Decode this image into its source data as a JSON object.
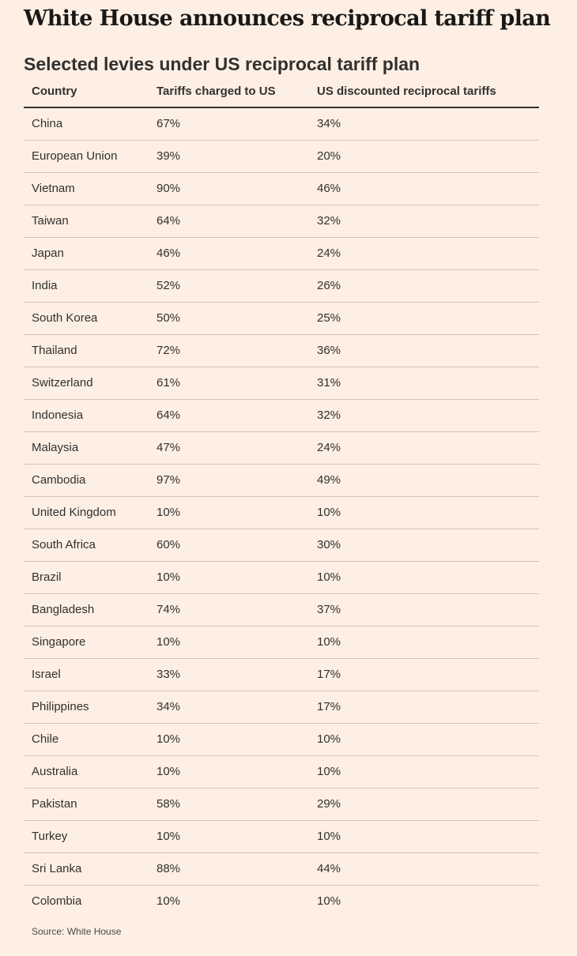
{
  "headline": "White House announces reciprocal tariff plan",
  "chart_data": {
    "type": "table",
    "title": "Selected levies under US reciprocal tariff plan",
    "columns": [
      "Country",
      "Tariffs charged to US",
      "US discounted reciprocal tariffs"
    ],
    "rows": [
      [
        "China",
        "67%",
        "34%"
      ],
      [
        "European Union",
        "39%",
        "20%"
      ],
      [
        "Vietnam",
        "90%",
        "46%"
      ],
      [
        "Taiwan",
        "64%",
        "32%"
      ],
      [
        "Japan",
        "46%",
        "24%"
      ],
      [
        "India",
        "52%",
        "26%"
      ],
      [
        "South Korea",
        "50%",
        "25%"
      ],
      [
        "Thailand",
        "72%",
        "36%"
      ],
      [
        "Switzerland",
        "61%",
        "31%"
      ],
      [
        "Indonesia",
        "64%",
        "32%"
      ],
      [
        "Malaysia",
        "47%",
        "24%"
      ],
      [
        "Cambodia",
        "97%",
        "49%"
      ],
      [
        "United Kingdom",
        "10%",
        "10%"
      ],
      [
        "South Africa",
        "60%",
        "30%"
      ],
      [
        "Brazil",
        "10%",
        "10%"
      ],
      [
        "Bangladesh",
        "74%",
        "37%"
      ],
      [
        "Singapore",
        "10%",
        "10%"
      ],
      [
        "Israel",
        "33%",
        "17%"
      ],
      [
        "Philippines",
        "34%",
        "17%"
      ],
      [
        "Chile",
        "10%",
        "10%"
      ],
      [
        "Australia",
        "10%",
        "10%"
      ],
      [
        "Pakistan",
        "58%",
        "29%"
      ],
      [
        "Turkey",
        "10%",
        "10%"
      ],
      [
        "Sri Lanka",
        "88%",
        "44%"
      ],
      [
        "Colombia",
        "10%",
        "10%"
      ]
    ],
    "source": "Source: White House"
  },
  "colors": {
    "background": "#fdefe4",
    "text": "#33302e",
    "rule": "#cec6b9"
  }
}
